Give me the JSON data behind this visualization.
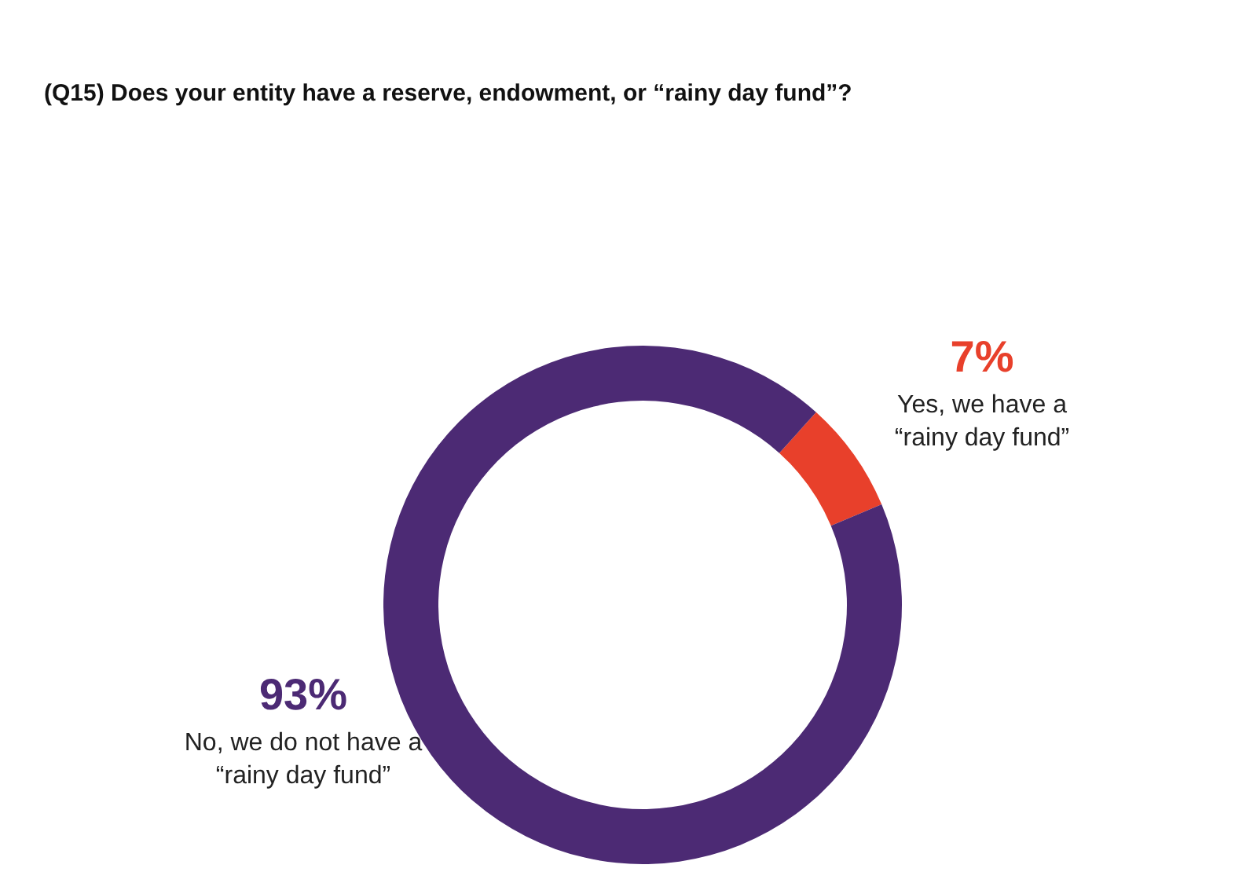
{
  "chart_data": {
    "type": "donut",
    "title": "(Q15) Does your entity have a reserve, endowment, or “rainy day fund”?",
    "categories": [
      "Yes, we have a “rainy day fund”",
      "No, we do not have a “rainy day fund”"
    ],
    "values": [
      7,
      93
    ],
    "colors": [
      "#e8402b",
      "#4c2a74"
    ],
    "data_labels": true,
    "value_labels": [
      "7%",
      "93%"
    ]
  }
}
